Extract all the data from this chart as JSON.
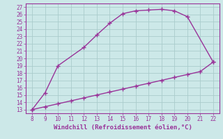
{
  "upper_x": [
    8,
    9,
    10,
    12,
    13,
    14,
    15,
    16,
    17,
    18,
    19,
    20,
    22
  ],
  "upper_y": [
    13.0,
    15.3,
    19.0,
    21.5,
    23.2,
    24.8,
    26.1,
    26.5,
    26.6,
    26.7,
    26.5,
    25.7,
    19.5
  ],
  "lower_x": [
    8,
    9,
    10,
    11,
    12,
    13,
    14,
    15,
    16,
    17,
    18,
    19,
    20,
    21,
    22
  ],
  "lower_y": [
    13.0,
    13.4,
    13.8,
    14.2,
    14.6,
    15.0,
    15.4,
    15.8,
    16.2,
    16.6,
    17.0,
    17.4,
    17.8,
    18.2,
    19.5
  ],
  "line_color": "#993399",
  "bg_color": "#cce8e8",
  "grid_color": "#aacccc",
  "xlabel": "Windchill (Refroidissement éolien,°C)",
  "xlim": [
    7.5,
    22.5
  ],
  "ylim": [
    12.5,
    27.5
  ],
  "xticks": [
    8,
    9,
    10,
    11,
    12,
    13,
    14,
    15,
    16,
    17,
    18,
    19,
    20,
    21,
    22
  ],
  "yticks": [
    13,
    14,
    15,
    16,
    17,
    18,
    19,
    20,
    21,
    22,
    23,
    24,
    25,
    26,
    27
  ],
  "marker": "+",
  "markersize": 4,
  "linewidth": 1.0,
  "xlabel_fontsize": 6.5,
  "tick_fontsize": 5.5
}
